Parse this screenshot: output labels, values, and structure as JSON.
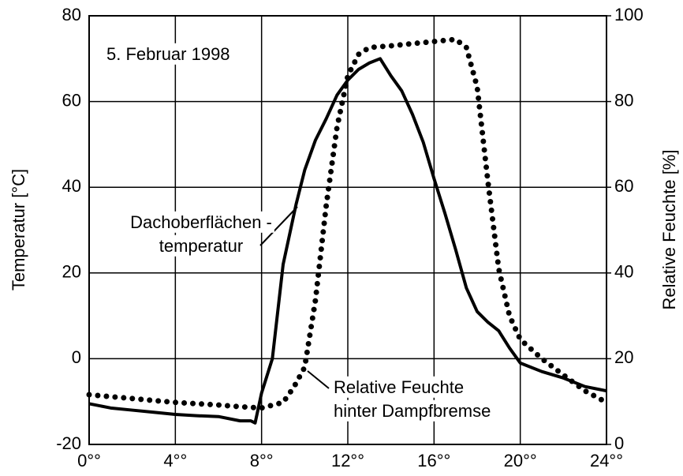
{
  "chart_data": {
    "type": "line",
    "y_label": "Temperatur [°C]",
    "y2_label": "Relative Feuchte [%]",
    "annotations": [
      [
        "5. Februar 1998"
      ],
      [
        "Dachoberflächen -",
        "temperatur"
      ],
      [
        "Relative Feuchte",
        "hinter Dampfbremse"
      ]
    ],
    "xlim": [
      0,
      24
    ],
    "xticks": [
      {
        "value": 0,
        "label": "0°°"
      },
      {
        "value": 4,
        "label": "4°°"
      },
      {
        "value": 8,
        "label": "8°°"
      },
      {
        "value": 12,
        "label": "12°°"
      },
      {
        "value": 16,
        "label": "16°°"
      },
      {
        "value": 20,
        "label": "20°°"
      },
      {
        "value": 24,
        "label": "24°°"
      }
    ],
    "ylim": [
      -20,
      80
    ],
    "yticks": [
      -20,
      0,
      20,
      40,
      60,
      80
    ],
    "y2lim": [
      0,
      100
    ],
    "y2ticks": [
      0,
      20,
      40,
      60,
      80,
      100
    ],
    "grid": true,
    "series": [
      {
        "name": "Dachoberflächentemperatur",
        "color": "#000000",
        "style": "solid",
        "x": [
          0,
          1,
          2,
          3,
          4,
          5,
          6,
          7,
          7.5,
          7.7,
          8,
          8.5,
          9,
          9.6,
          10,
          10.5,
          11,
          11.5,
          12,
          12.5,
          13,
          13.5,
          14,
          14.5,
          15,
          15.5,
          16,
          16.5,
          17,
          17.5,
          18,
          18.5,
          19,
          19.5,
          20,
          21,
          22,
          23,
          24
        ],
        "values": [
          -10.5,
          -11.5,
          -12,
          -12.5,
          -13,
          -13.3,
          -13.5,
          -14.5,
          -14.5,
          -15,
          -8,
          0,
          22,
          36,
          44,
          51,
          56,
          61.5,
          65,
          67.5,
          69,
          70,
          66,
          62.5,
          57,
          50.5,
          42,
          34,
          25.5,
          16.5,
          11,
          8.5,
          6.5,
          2.5,
          -1,
          -3,
          -4.5,
          -6.5,
          -7.5
        ]
      },
      {
        "name": "Relative Feuchte hinter Dampfbremse",
        "color": "#000000",
        "style": "dotted",
        "axis": "y2",
        "x": [
          0,
          2,
          4,
          6,
          7,
          8,
          9,
          9.5,
          10,
          10.5,
          11,
          11.5,
          12,
          12.5,
          13,
          14,
          15,
          16,
          17,
          17.5,
          18,
          18.5,
          19,
          19.5,
          20,
          21,
          22,
          23,
          24
        ],
        "values": [
          11.6,
          10.7,
          9.8,
          9.2,
          8.8,
          8.5,
          9.8,
          13.4,
          18,
          33.7,
          55.8,
          74,
          86,
          91,
          92.6,
          93,
          93.5,
          94,
          94.5,
          92.6,
          83.4,
          61.3,
          41,
          30,
          24.5,
          20,
          16.2,
          12.5,
          9.8
        ]
      }
    ]
  }
}
